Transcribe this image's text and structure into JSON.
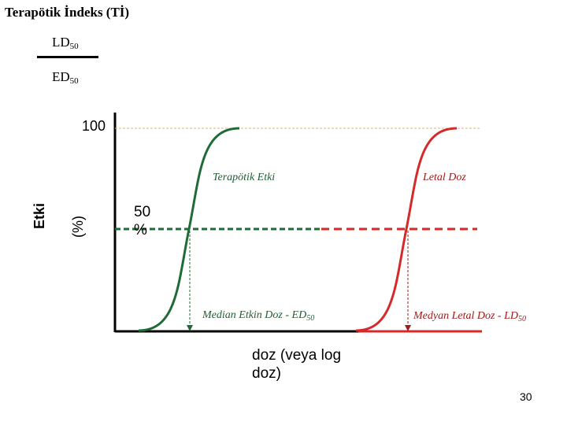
{
  "title": "Terapötik İndeks (Tİ)",
  "fraction": {
    "numerator_base": "LD",
    "numerator_sub": "50",
    "denominator_base": "ED",
    "denominator_sub": "50"
  },
  "axis": {
    "y_label": "Etki",
    "y_unit": "(%)",
    "y_tick_top": "100",
    "y_tick_mid": "50 %",
    "x_label": "doz (veya log doz)"
  },
  "curves": {
    "therapeutic_label": "Terapötik Etki",
    "lethal_label": "Letal Doz",
    "therapeutic_color": "#1f6b37",
    "lethal_color": "#d42a2a"
  },
  "markers": {
    "ed50_label": "Median Etkin Doz - ED",
    "ed50_sub": "50",
    "ld50_label": "Medyan Letal Doz - LD",
    "ld50_sub": "50"
  },
  "page_number": "30"
}
